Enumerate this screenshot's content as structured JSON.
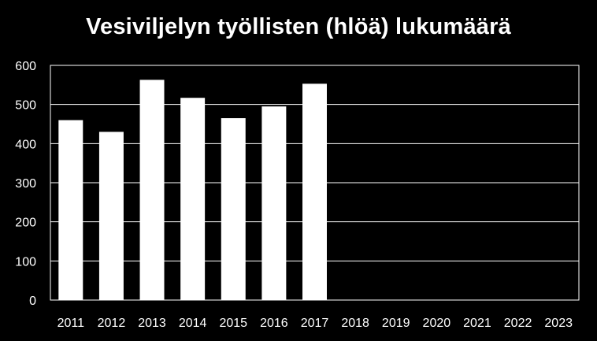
{
  "chart_data": {
    "type": "bar",
    "title": "Vesiviljelyn työllisten (hlöä) lukumäärä",
    "xlabel": "",
    "ylabel": "",
    "categories": [
      "2011",
      "2012",
      "2013",
      "2014",
      "2015",
      "2016",
      "2017",
      "2018",
      "2019",
      "2020",
      "2021",
      "2022",
      "2023"
    ],
    "values": [
      460,
      430,
      563,
      517,
      465,
      495,
      553,
      null,
      null,
      null,
      null,
      null,
      null
    ],
    "ylim": [
      0,
      600
    ],
    "yticks": [
      "0",
      "100",
      "200",
      "300",
      "400",
      "500",
      "600"
    ],
    "grid": true,
    "legend": "none",
    "colors": {
      "background": "#000000",
      "bar": "#ffffff",
      "grid": "#ffffff",
      "text": "#ffffff"
    }
  }
}
